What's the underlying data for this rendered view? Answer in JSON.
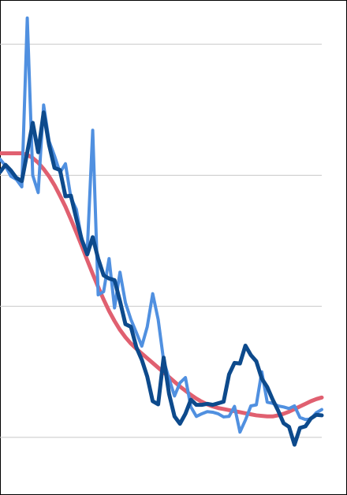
{
  "chart_data": {
    "type": "line",
    "title": "",
    "xlabel": "",
    "ylabel": "",
    "grid": true,
    "legend": "none",
    "x_range": [
      0,
      59
    ],
    "y_range": [
      0,
      1
    ],
    "gridlines_y": [
      0.125,
      0.375,
      0.625,
      0.875
    ],
    "x": [
      0,
      1,
      2,
      3,
      4,
      5,
      6,
      7,
      8,
      9,
      10,
      11,
      12,
      13,
      14,
      15,
      16,
      17,
      18,
      19,
      20,
      21,
      22,
      23,
      24,
      25,
      26,
      27,
      28,
      29,
      30,
      31,
      32,
      33,
      34,
      35,
      36,
      37,
      38,
      39,
      40,
      41,
      42,
      43,
      44,
      45,
      46,
      47,
      48,
      49,
      50,
      51,
      52,
      53,
      54,
      55,
      56,
      57,
      58,
      59
    ],
    "series": [
      {
        "color": "#e06070",
        "values": [
          0.667,
          0.667,
          0.667,
          0.667,
          0.667,
          0.664,
          0.658,
          0.649,
          0.637,
          0.623,
          0.606,
          0.586,
          0.565,
          0.541,
          0.516,
          0.49,
          0.463,
          0.437,
          0.412,
          0.388,
          0.366,
          0.347,
          0.33,
          0.316,
          0.304,
          0.294,
          0.285,
          0.276,
          0.267,
          0.258,
          0.249,
          0.24,
          0.231,
          0.222,
          0.214,
          0.206,
          0.199,
          0.193,
          0.188,
          0.184,
          0.181,
          0.179,
          0.177,
          0.175,
          0.173,
          0.171,
          0.169,
          0.167,
          0.166,
          0.165,
          0.165,
          0.167,
          0.17,
          0.174,
          0.179,
          0.184,
          0.189,
          0.194,
          0.198,
          0.201
        ]
      },
      {
        "color": "#5090e0",
        "values": [
          0.656,
          0.643,
          0.623,
          0.617,
          0.603,
          0.925,
          0.625,
          0.592,
          0.759,
          0.69,
          0.662,
          0.63,
          0.647,
          0.582,
          0.56,
          0.502,
          0.481,
          0.711,
          0.397,
          0.403,
          0.466,
          0.372,
          0.44,
          0.382,
          0.35,
          0.325,
          0.299,
          0.336,
          0.399,
          0.35,
          0.272,
          0.237,
          0.204,
          0.229,
          0.239,
          0.183,
          0.165,
          0.17,
          0.174,
          0.173,
          0.17,
          0.164,
          0.165,
          0.184,
          0.135,
          0.158,
          0.185,
          0.187,
          0.25,
          0.192,
          0.19,
          0.185,
          0.183,
          0.18,
          0.185,
          0.163,
          0.159,
          0.16,
          0.172,
          0.178
        ]
      },
      {
        "color": "#0d4a8c",
        "values": [
          0.631,
          0.645,
          0.634,
          0.62,
          0.614,
          0.669,
          0.725,
          0.669,
          0.745,
          0.683,
          0.639,
          0.635,
          0.585,
          0.586,
          0.542,
          0.502,
          0.474,
          0.507,
          0.466,
          0.434,
          0.428,
          0.425,
          0.385,
          0.341,
          0.336,
          0.297,
          0.273,
          0.241,
          0.194,
          0.188,
          0.277,
          0.208,
          0.165,
          0.151,
          0.17,
          0.197,
          0.187,
          0.187,
          0.189,
          0.187,
          0.19,
          0.193,
          0.245,
          0.267,
          0.266,
          0.3,
          0.282,
          0.27,
          0.237,
          0.221,
          0.197,
          0.176,
          0.152,
          0.145,
          0.111,
          0.143,
          0.146,
          0.161,
          0.168,
          0.167
        ]
      }
    ]
  }
}
